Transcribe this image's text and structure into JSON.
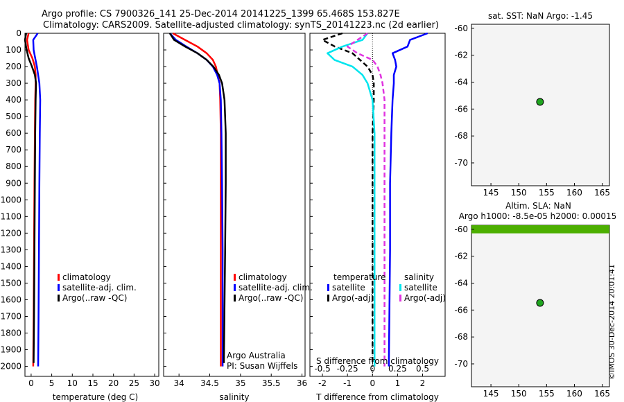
{
  "header": {
    "line1": "Argo profile: CS 7900326_141 25-Dec-2014 20141225_1399 65.468S 153.827E",
    "line2": "Climatology: CARS2009. Satellite-adjusted climatology: synTS_20141223.nc (2d earlier)"
  },
  "credit": "©IMOS 30-Dec-2014 20:01:41",
  "colors": {
    "climatology": "#ff0000",
    "satellite": "#0000ff",
    "argo": "#000000",
    "satellite_s": "#00e5ee",
    "argo_s": "#e033e0",
    "map_bg": "#f4f4f4",
    "sla_band": "#4caf00"
  },
  "chart_data": [
    {
      "type": "line",
      "id": "temperature",
      "xlabel": "temperature (deg C)",
      "xlim": [
        -1.5,
        31
      ],
      "xticks": [
        "0",
        "5",
        "10",
        "15",
        "20",
        "25",
        "30"
      ],
      "ylim": [
        0,
        2060
      ],
      "yticks": [
        "0",
        "100",
        "200",
        "300",
        "400",
        "500",
        "600",
        "700",
        "800",
        "900",
        "1000",
        "1100",
        "1200",
        "1300",
        "1400",
        "1500",
        "1600",
        "1700",
        "1800",
        "1900",
        "2000"
      ],
      "legend": [
        "climatology",
        "satellite-adj. clim.",
        "Argo(..raw -QC)"
      ],
      "series": [
        {
          "name": "climatology",
          "color": "#ff0000",
          "x": [
            -0.6,
            -1.0,
            -0.6,
            0.3,
            0.9,
            1.1,
            1.1,
            1.0,
            0.9,
            0.8,
            0.7,
            0.6,
            0.5
          ],
          "y": [
            0,
            40,
            100,
            150,
            200,
            250,
            300,
            400,
            600,
            900,
            1300,
            1700,
            2000
          ]
        },
        {
          "name": "satellite-adj. clim.",
          "color": "#0000ff",
          "x": [
            1.6,
            0.5,
            0.6,
            1.0,
            1.4,
            1.7,
            2.0,
            2.2,
            2.1,
            2.0,
            1.9,
            1.8,
            1.7
          ],
          "y": [
            0,
            40,
            100,
            150,
            200,
            250,
            300,
            400,
            600,
            900,
            1300,
            1700,
            2000
          ]
        },
        {
          "name": "Argo(..raw -QC)",
          "color": "#000000",
          "x": [
            -1.2,
            -1.5,
            -1.1,
            -0.6,
            0.2,
            0.9,
            1.2,
            1.1,
            1.0,
            0.9,
            0.8,
            0.7,
            0.6
          ],
          "y": [
            0,
            40,
            100,
            150,
            200,
            250,
            300,
            400,
            600,
            900,
            1300,
            1700,
            1980
          ]
        }
      ]
    },
    {
      "type": "line",
      "id": "salinity",
      "xlabel": "salinity",
      "xlim": [
        33.75,
        36.05
      ],
      "xticks": [
        "34",
        "34.5",
        "35",
        "35.5",
        "36"
      ],
      "ylim": [
        0,
        2060
      ],
      "legend": [
        "climatology",
        "satellite-adj. clim.",
        "Argo(..raw -QC)"
      ],
      "annotation": [
        "Argo Australia",
        "PI: Susan Wijffels"
      ],
      "series": [
        {
          "name": "climatology",
          "color": "#ff0000",
          "x": [
            33.9,
            34.1,
            34.3,
            34.45,
            34.55,
            34.6,
            34.63,
            34.66,
            34.67,
            34.68,
            34.68,
            34.68,
            34.68
          ],
          "y": [
            0,
            40,
            80,
            120,
            160,
            200,
            250,
            300,
            400,
            600,
            900,
            1300,
            2000
          ]
        },
        {
          "name": "satellite-adj. clim.",
          "color": "#0000ff",
          "x": [
            33.85,
            33.95,
            34.12,
            34.3,
            34.45,
            34.55,
            34.62,
            34.66,
            34.68,
            34.69,
            34.7,
            34.71,
            34.71
          ],
          "y": [
            0,
            40,
            80,
            120,
            160,
            200,
            250,
            300,
            400,
            600,
            900,
            1300,
            2000
          ]
        },
        {
          "name": "Argo(..raw -QC)",
          "color": "#000000",
          "x": [
            33.85,
            33.92,
            34.1,
            34.3,
            34.45,
            34.56,
            34.65,
            34.7,
            34.74,
            34.76,
            34.76,
            34.75,
            34.73
          ],
          "y": [
            0,
            40,
            80,
            120,
            160,
            200,
            250,
            300,
            400,
            600,
            900,
            1300,
            1980
          ]
        }
      ]
    },
    {
      "type": "line",
      "id": "difference",
      "xlabel": "T difference from climatology",
      "xlabel_top": "S difference from climatology",
      "xlim": [
        -2.5,
        2.9
      ],
      "xticks": [
        "-2",
        "-1",
        "0",
        "1",
        "2"
      ],
      "x2lim": [
        -0.625,
        0.725
      ],
      "x2ticks": [
        "-0.5",
        "-0.25",
        "0",
        "0.25",
        "0.5"
      ],
      "ylim": [
        0,
        2060
      ],
      "legend_t": {
        "title": "temperature",
        "items": [
          "satellite",
          "Argo(-adj)"
        ]
      },
      "legend_s": {
        "title": "salinity",
        "items": [
          "satellite",
          "Argo(-adj)"
        ]
      },
      "series": [
        {
          "name": "T satellite",
          "color": "#0000ff",
          "axis": "T",
          "dash": false,
          "x": [
            2.2,
            1.5,
            1.4,
            0.8,
            0.9,
            0.95,
            0.85,
            0.85,
            0.8,
            0.75,
            0.7,
            0.7,
            0.65
          ],
          "y": [
            0,
            40,
            80,
            120,
            160,
            200,
            250,
            300,
            400,
            600,
            900,
            1300,
            2000
          ]
        },
        {
          "name": "T Argo(-adj)",
          "color": "#000000",
          "axis": "T",
          "dash": true,
          "x": [
            -1.2,
            -2.0,
            -1.5,
            -0.8,
            -0.5,
            -0.2,
            0.0,
            0.05,
            0.05,
            0.0,
            0.0,
            0.0,
            0.0
          ],
          "y": [
            0,
            40,
            80,
            120,
            160,
            200,
            250,
            300,
            400,
            600,
            900,
            1300,
            1980
          ]
        },
        {
          "name": "S satellite",
          "color": "#00e5ee",
          "axis": "S",
          "dash": false,
          "x": [
            -0.05,
            -0.1,
            -0.3,
            -0.45,
            -0.38,
            -0.2,
            -0.1,
            -0.05,
            0.0,
            0.02,
            0.02,
            0.02,
            0.02
          ],
          "y": [
            0,
            40,
            80,
            120,
            160,
            200,
            250,
            300,
            400,
            600,
            900,
            1300,
            2000
          ]
        },
        {
          "name": "S Argo(-adj)",
          "color": "#e033e0",
          "axis": "S",
          "dash": true,
          "x": [
            -0.05,
            -0.15,
            -0.25,
            -0.15,
            0.0,
            0.05,
            0.08,
            0.1,
            0.12,
            0.12,
            0.12,
            0.12,
            0.12
          ],
          "y": [
            0,
            40,
            80,
            120,
            160,
            200,
            250,
            300,
            400,
            600,
            900,
            1300,
            2000
          ]
        }
      ]
    },
    {
      "type": "scatter",
      "id": "sst_map",
      "title": "sat. SST: NaN Argo: -1.45",
      "xlim": [
        141.5,
        166.3
      ],
      "xticks": [
        "145",
        "150",
        "155",
        "160",
        "165"
      ],
      "ylim": [
        -71.7,
        -59.7
      ],
      "yticks": [
        "-60",
        "-62",
        "-64",
        "-66",
        "-68",
        "-70"
      ],
      "point": {
        "x": 153.827,
        "y": -65.468
      }
    },
    {
      "type": "scatter",
      "id": "sla_map",
      "title": "Altim. SLA: NaN",
      "subtitle": "Argo h1000: -8.5e-05 h2000: 0.00015",
      "xlim": [
        141.5,
        166.3
      ],
      "xticks": [
        "145",
        "150",
        "155",
        "160",
        "165"
      ],
      "ylim": [
        -71.7,
        -59.7
      ],
      "yticks": [
        "-60",
        "-62",
        "-64",
        "-66",
        "-68",
        "-70"
      ],
      "band_lat": [
        -59.7,
        -60.3
      ],
      "point": {
        "x": 153.827,
        "y": -65.468
      }
    }
  ]
}
